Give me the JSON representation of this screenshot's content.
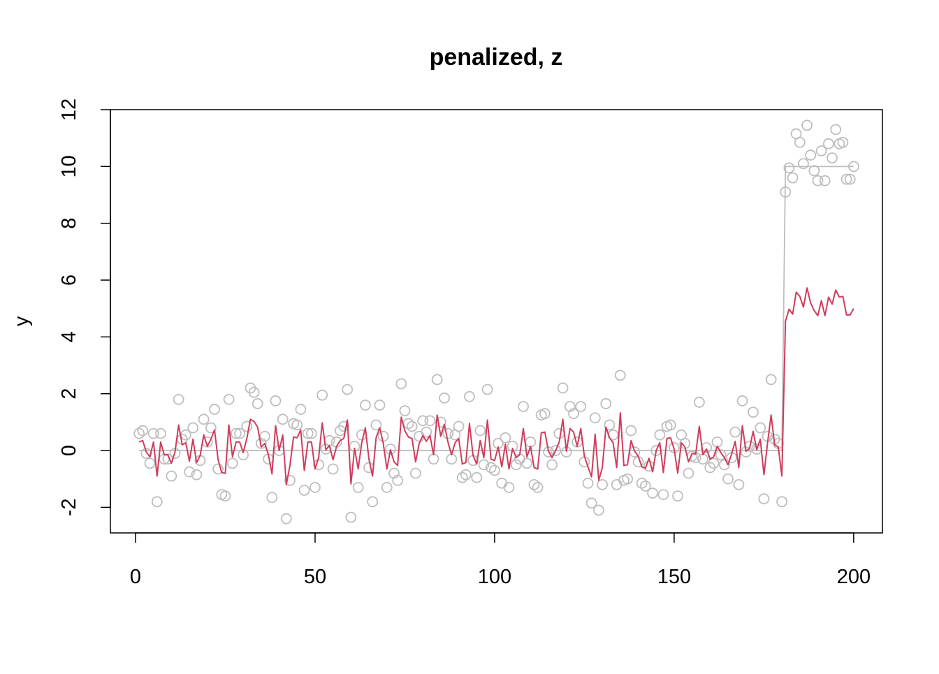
{
  "chart_data": {
    "type": "scatter",
    "title": "penalized, z",
    "y_label": "y",
    "xlim": [
      -7,
      208
    ],
    "ylim": [
      -2.9,
      12.0
    ],
    "xticks": [
      0,
      50,
      100,
      150,
      200
    ],
    "yticks": [
      -2,
      0,
      2,
      4,
      6,
      8,
      10,
      12
    ],
    "x": [
      1,
      2,
      3,
      4,
      5,
      6,
      7,
      8,
      9,
      10,
      11,
      12,
      13,
      14,
      15,
      16,
      17,
      18,
      19,
      20,
      21,
      22,
      23,
      24,
      25,
      26,
      27,
      28,
      29,
      30,
      31,
      32,
      33,
      34,
      35,
      36,
      37,
      38,
      39,
      40,
      41,
      42,
      43,
      44,
      45,
      46,
      47,
      48,
      49,
      50,
      51,
      52,
      53,
      54,
      55,
      56,
      57,
      58,
      59,
      60,
      61,
      62,
      63,
      64,
      65,
      66,
      67,
      68,
      69,
      70,
      71,
      72,
      73,
      74,
      75,
      76,
      77,
      78,
      79,
      80,
      81,
      82,
      83,
      84,
      85,
      86,
      87,
      88,
      89,
      90,
      91,
      92,
      93,
      94,
      95,
      96,
      97,
      98,
      99,
      100,
      101,
      102,
      103,
      104,
      105,
      106,
      107,
      108,
      109,
      110,
      111,
      112,
      113,
      114,
      115,
      116,
      117,
      118,
      119,
      120,
      121,
      122,
      123,
      124,
      125,
      126,
      127,
      128,
      129,
      130,
      131,
      132,
      133,
      134,
      135,
      136,
      137,
      138,
      139,
      140,
      141,
      142,
      143,
      144,
      145,
      146,
      147,
      148,
      149,
      150,
      151,
      152,
      153,
      154,
      155,
      156,
      157,
      158,
      159,
      160,
      161,
      162,
      163,
      164,
      165,
      166,
      167,
      168,
      169,
      170,
      171,
      172,
      173,
      174,
      175,
      176,
      177,
      178,
      179,
      180,
      181,
      182,
      183,
      184,
      185,
      186,
      187,
      188,
      189,
      190,
      191,
      192,
      193,
      194,
      195,
      196,
      197,
      198,
      199,
      200
    ],
    "series": [
      {
        "mode": "markers",
        "color": "#bebebe",
        "values": [
          0.6,
          0.7,
          -0.1,
          -0.45,
          0.6,
          -1.8,
          0.6,
          -0.3,
          -0.3,
          -0.9,
          -0.1,
          1.8,
          0.4,
          0.55,
          -0.75,
          0.8,
          -0.85,
          -0.35,
          1.1,
          0.3,
          0.8,
          1.45,
          -0.65,
          -1.55,
          -1.6,
          1.8,
          -0.45,
          0.6,
          0.6,
          -0.15,
          0.85,
          2.2,
          2.05,
          1.65,
          0.25,
          0.5,
          -0.3,
          -1.65,
          1.75,
          0,
          1.1,
          -2.4,
          -1.05,
          0.95,
          0.9,
          1.45,
          -1.4,
          0.6,
          0.6,
          -1.3,
          -0.5,
          1.95,
          0.05,
          0.35,
          -0.65,
          0.3,
          0.7,
          0.85,
          2.15,
          -2.35,
          0.15,
          -1.3,
          0.55,
          1.6,
          -0.6,
          -1.8,
          0.9,
          1.6,
          0.5,
          -1.3,
          0.05,
          -0.8,
          -1.05,
          2.35,
          1.4,
          0.95,
          0.85,
          -0.8,
          0.5,
          1.05,
          0.65,
          1.05,
          -0.3,
          2.5,
          1.0,
          1.85,
          0.6,
          -0.3,
          0.55,
          0.85,
          -0.95,
          -0.85,
          1.9,
          -0.35,
          -0.95,
          0.7,
          -0.5,
          2.15,
          -0.6,
          -0.7,
          0.25,
          -1.15,
          0.45,
          -1.3,
          0.15,
          -0.5,
          -0.3,
          1.55,
          -0.45,
          0.3,
          -1.2,
          -1.3,
          1.25,
          1.3,
          -0.05,
          -0.5,
          0,
          0.6,
          2.2,
          -0.05,
          1.55,
          1.3,
          0.3,
          1.55,
          -0.4,
          -1.15,
          -1.85,
          1.15,
          -2.1,
          -1.2,
          1.65,
          0.9,
          0.55,
          -1.2,
          2.65,
          -1.05,
          -1.0,
          0.7,
          -0.05,
          -0.4,
          -1.15,
          -1.25,
          -0.55,
          -1.5,
          0,
          0.55,
          -1.55,
          0.85,
          0.9,
          0.1,
          -1.6,
          0.55,
          0.25,
          -0.8,
          -0.2,
          -0.25,
          1.7,
          -0.3,
          0.1,
          -0.6,
          -0.45,
          0.3,
          -0.15,
          -0.5,
          -1.0,
          -0.25,
          0.65,
          -1.2,
          1.75,
          -0.05,
          0.15,
          1.35,
          0.05,
          0.8,
          -1.7,
          0.5,
          2.5,
          0.4,
          0.25,
          -1.8,
          9.1,
          9.95,
          9.6,
          11.15,
          10.85,
          10.1,
          11.45,
          10.4,
          9.85,
          9.5,
          10.55,
          9.5,
          10.8,
          10.3,
          11.3,
          10.8,
          10.85,
          9.55,
          9.55,
          10.0
        ]
      },
      {
        "mode": "lines",
        "color": "#d03c5c",
        "values": [
          0.3,
          0.35,
          -0.05,
          -0.225,
          0.3,
          -0.9,
          0.3,
          -0.15,
          -0.15,
          -0.45,
          -0.05,
          0.9,
          0.2,
          0.275,
          -0.375,
          0.4,
          -0.425,
          -0.175,
          0.55,
          0.15,
          0.4,
          0.725,
          -0.325,
          -0.775,
          -0.8,
          0.9,
          -0.225,
          0.3,
          0.3,
          -0.075,
          0.425,
          1.1,
          1.025,
          0.825,
          0.125,
          0.25,
          -0.15,
          -0.825,
          0.875,
          0,
          0.55,
          -1.2,
          -0.525,
          0.475,
          0.45,
          0.725,
          -0.7,
          0.3,
          0.3,
          -0.65,
          -0.25,
          0.975,
          0.025,
          0.175,
          -0.325,
          0.15,
          0.35,
          0.425,
          1.075,
          -1.175,
          0.075,
          -0.65,
          0.275,
          0.8,
          -0.3,
          -0.9,
          0.45,
          0.8,
          0.25,
          -0.65,
          0.025,
          -0.4,
          -0.525,
          1.175,
          0.7,
          0.475,
          0.425,
          -0.4,
          0.25,
          0.525,
          0.325,
          0.525,
          -0.15,
          1.25,
          0.5,
          0.925,
          0.3,
          -0.15,
          0.275,
          0.425,
          -0.475,
          -0.425,
          0.95,
          -0.175,
          -0.475,
          0.35,
          -0.25,
          1.075,
          -0.3,
          -0.35,
          0.125,
          -0.575,
          0.225,
          -0.65,
          0.075,
          -0.25,
          -0.15,
          0.775,
          -0.225,
          0.15,
          -0.6,
          -0.65,
          0.625,
          0.65,
          -0.025,
          -0.25,
          0,
          0.3,
          1.1,
          -0.025,
          0.775,
          0.65,
          0.15,
          0.775,
          -0.2,
          -0.575,
          -0.925,
          0.575,
          -1.05,
          -0.6,
          0.825,
          0.45,
          0.275,
          -0.6,
          1.325,
          -0.525,
          -0.5,
          0.35,
          -0.025,
          -0.2,
          -0.575,
          -0.625,
          -0.275,
          -0.75,
          0,
          0.275,
          -0.775,
          0.425,
          0.45,
          0.05,
          -0.8,
          0.275,
          0.125,
          -0.4,
          -0.1,
          -0.125,
          0.85,
          -0.15,
          0.05,
          -0.3,
          -0.225,
          0.15,
          -0.075,
          -0.25,
          -0.5,
          -0.125,
          0.325,
          -0.6,
          0.875,
          -0.025,
          0.075,
          0.675,
          0.025,
          0.4,
          -0.85,
          0.25,
          1.25,
          0.2,
          0.125,
          -0.9,
          4.55,
          4.975,
          4.8,
          5.575,
          5.425,
          5.05,
          5.725,
          5.2,
          4.925,
          4.75,
          5.275,
          4.75,
          5.4,
          5.15,
          5.65,
          5.4,
          5.425,
          4.775,
          4.775,
          5.0
        ]
      },
      {
        "mode": "lines",
        "color": "#bebebe",
        "x": [
          1,
          180,
          181,
          200
        ],
        "values": [
          0,
          0,
          10,
          10
        ]
      }
    ]
  }
}
